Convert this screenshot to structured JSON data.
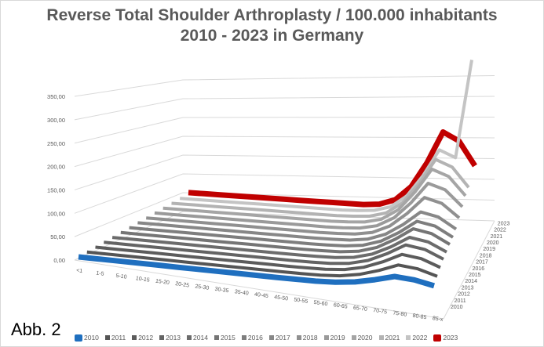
{
  "title_line1": "Reverse Total Shoulder Arthroplasty / 100.000 inhabitants",
  "title_line2": "2010 - 2023 in Germany",
  "caption": "Abb. 2",
  "chart_data": {
    "type": "line",
    "subtype": "3d-line",
    "title": "Reverse Total Shoulder Arthroplasty / 100.000 inhabitants 2010 - 2023 in Germany",
    "xlabel": "",
    "ylabel": "",
    "ylim": [
      0,
      350
    ],
    "yticks": [
      "0,00",
      "50,00",
      "100,00",
      "150,00",
      "200,00",
      "250,00",
      "300,00",
      "350,00"
    ],
    "grid": true,
    "legend_position": "bottom",
    "categories": [
      "<1",
      "1-5",
      "5-10",
      "10-15",
      "15-20",
      "20-25",
      "25-30",
      "30-35",
      "35-40",
      "40-45",
      "45-50",
      "50-55",
      "55-60",
      "60-65",
      "65-70",
      "70-75",
      "75-80",
      "80-85",
      "85-x"
    ],
    "series": [
      {
        "name": "2010",
        "color": "#1f6fbf",
        "values": [
          0,
          0,
          0,
          0,
          0,
          0,
          0,
          0,
          0,
          0,
          0,
          0.3,
          0.8,
          2.8,
          7.8,
          16.8,
          28,
          25.2,
          16.8
        ]
      },
      {
        "name": "2011",
        "color": "#555555",
        "values": [
          0,
          0,
          0,
          0,
          0,
          0,
          0,
          0,
          0,
          0,
          0,
          0.4,
          1.2,
          4,
          11.2,
          24,
          40,
          36,
          24
        ]
      },
      {
        "name": "2012",
        "color": "#5c5c5c",
        "values": [
          0,
          0,
          0,
          0,
          0,
          0,
          0,
          0,
          0,
          0,
          0,
          0.5,
          1.5,
          5,
          14,
          30,
          50,
          45,
          30
        ]
      },
      {
        "name": "2013",
        "color": "#646464",
        "values": [
          0,
          0,
          0,
          0,
          0,
          0,
          0,
          0,
          0,
          0,
          0,
          0.6,
          1.7,
          5.8,
          16.2,
          34.8,
          58,
          52.2,
          34.8
        ]
      },
      {
        "name": "2014",
        "color": "#6c6c6c",
        "values": [
          0,
          0,
          0,
          0,
          0,
          0,
          0,
          0,
          0,
          0,
          0,
          0.6,
          1.9,
          6.2,
          17.4,
          37.2,
          62,
          55.8,
          37.2
        ]
      },
      {
        "name": "2015",
        "color": "#757575",
        "values": [
          0,
          0,
          0,
          0,
          0,
          0,
          0,
          0,
          0,
          0,
          0,
          0.7,
          2,
          6.8,
          19,
          40.8,
          68,
          61.2,
          40.8
        ]
      },
      {
        "name": "2016",
        "color": "#7e7e7e",
        "values": [
          0,
          0,
          0,
          0,
          0,
          0,
          0,
          0,
          0,
          0,
          0,
          0.7,
          2.2,
          7.2,
          20.2,
          43.2,
          72,
          64.8,
          43.2
        ]
      },
      {
        "name": "2017",
        "color": "#878787",
        "values": [
          0,
          0,
          0,
          0,
          0,
          0,
          0,
          0,
          0,
          0,
          0,
          0.8,
          2.4,
          8,
          22.4,
          48,
          80,
          72,
          48
        ]
      },
      {
        "name": "2018",
        "color": "#909090",
        "values": [
          0,
          0,
          0,
          0,
          0,
          0,
          0,
          0,
          0,
          0,
          0,
          1,
          3,
          10,
          28,
          60,
          100,
          90,
          60
        ]
      },
      {
        "name": "2019",
        "color": "#9a9a9a",
        "values": [
          0,
          0,
          0,
          0,
          0,
          0,
          0,
          0,
          0,
          0,
          0,
          1.2,
          3.6,
          12,
          33.6,
          72,
          120,
          108,
          72
        ]
      },
      {
        "name": "2020",
        "color": "#a5a5a5",
        "values": [
          0,
          0,
          0,
          0,
          0,
          0,
          0,
          0,
          0,
          0,
          0,
          1.4,
          4.2,
          14,
          39.2,
          84,
          140,
          126,
          84
        ]
      },
      {
        "name": "2021",
        "color": "#b3b3b3",
        "values": [
          0,
          0,
          0,
          0,
          0,
          0,
          0,
          0,
          0,
          0,
          0,
          1.5,
          4.5,
          15,
          42,
          90,
          150,
          135,
          90
        ]
      },
      {
        "name": "2022",
        "color": "#c4c4c4",
        "values": [
          0,
          0,
          0,
          0,
          0,
          0,
          0,
          0,
          0,
          0,
          0,
          1.6,
          4.8,
          16,
          44.8,
          96,
          160,
          144,
          380
        ]
      },
      {
        "name": "2023",
        "color": "#c00000",
        "values": [
          2,
          2,
          2,
          2,
          2,
          2,
          2,
          2,
          2,
          2,
          2,
          2.2,
          5.7,
          19,
          53.2,
          114,
          190,
          171,
          114
        ]
      }
    ]
  }
}
